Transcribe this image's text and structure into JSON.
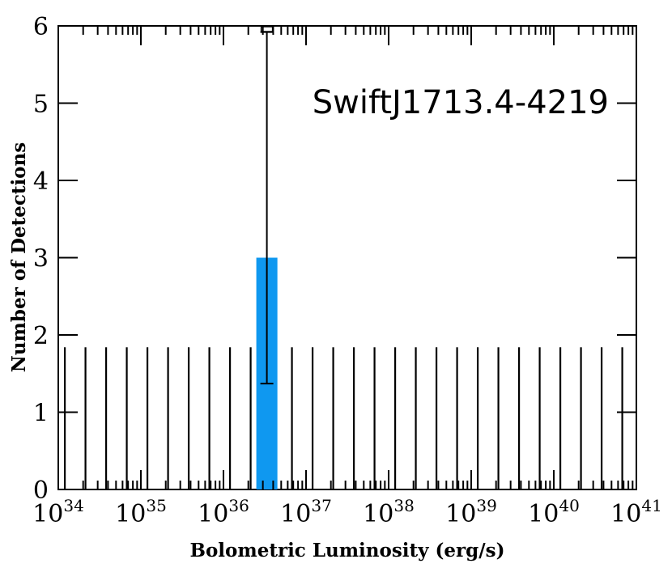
{
  "chart_data": {
    "type": "bar",
    "annotation": "SwiftJ1713.4-4219",
    "xlabel": "Bolometric Luminosity (erg/s)",
    "ylabel": "Number of Detections",
    "x_scale": "log",
    "xlim": [
      1e+34,
      1e+41
    ],
    "ylim": [
      0,
      6
    ],
    "x_ticks": [
      {
        "base": "10",
        "exp": "34"
      },
      {
        "base": "10",
        "exp": "35"
      },
      {
        "base": "10",
        "exp": "36"
      },
      {
        "base": "10",
        "exp": "37"
      },
      {
        "base": "10",
        "exp": "38"
      },
      {
        "base": "10",
        "exp": "39"
      },
      {
        "base": "10",
        "exp": "40"
      },
      {
        "base": "10",
        "exp": "41"
      }
    ],
    "y_ticks": [
      "0",
      "1",
      "2",
      "3",
      "4",
      "5",
      "6"
    ],
    "bins_per_decade": 4,
    "bars": [
      {
        "x_low": 2.5e+36,
        "x_high": 4.5e+36,
        "value": 3,
        "error_low": 1.37,
        "error_high": 5.92
      }
    ],
    "upper_limits": {
      "value": 1.84,
      "x_start": 1.2e+34,
      "x_end": 7.5e+40,
      "bins_per_decade": 4
    },
    "colors": {
      "bar": "#0f98f0",
      "axes": "#000000"
    }
  }
}
